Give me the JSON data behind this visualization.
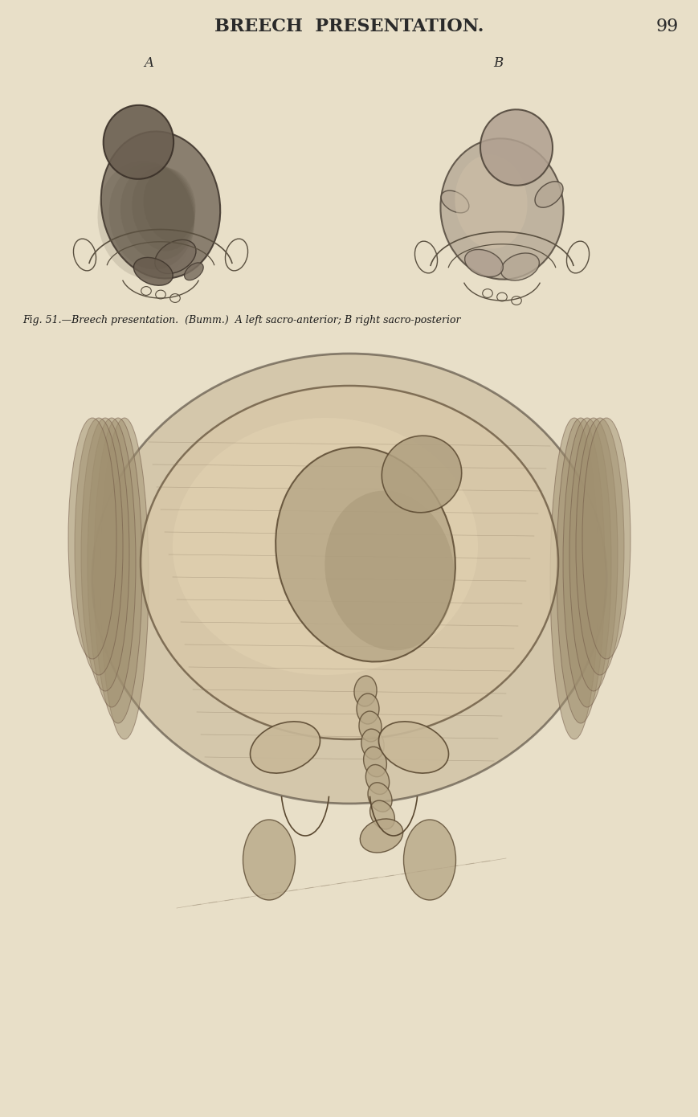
{
  "background_color": "#e8dfc8",
  "page_title": "BREECH  PRESENTATION.",
  "page_number": "99",
  "label_A": "A",
  "label_B": "B",
  "caption": "Fig. 51.—Breech presentation.  (Bumm.)  A left sacro-anterior; B right sacro-posterior",
  "title_fontsize": 16,
  "caption_fontsize": 9,
  "label_fontsize": 12,
  "page_num_fontsize": 16,
  "top_image_url": "top_images",
  "bottom_image_url": "bottom_image"
}
